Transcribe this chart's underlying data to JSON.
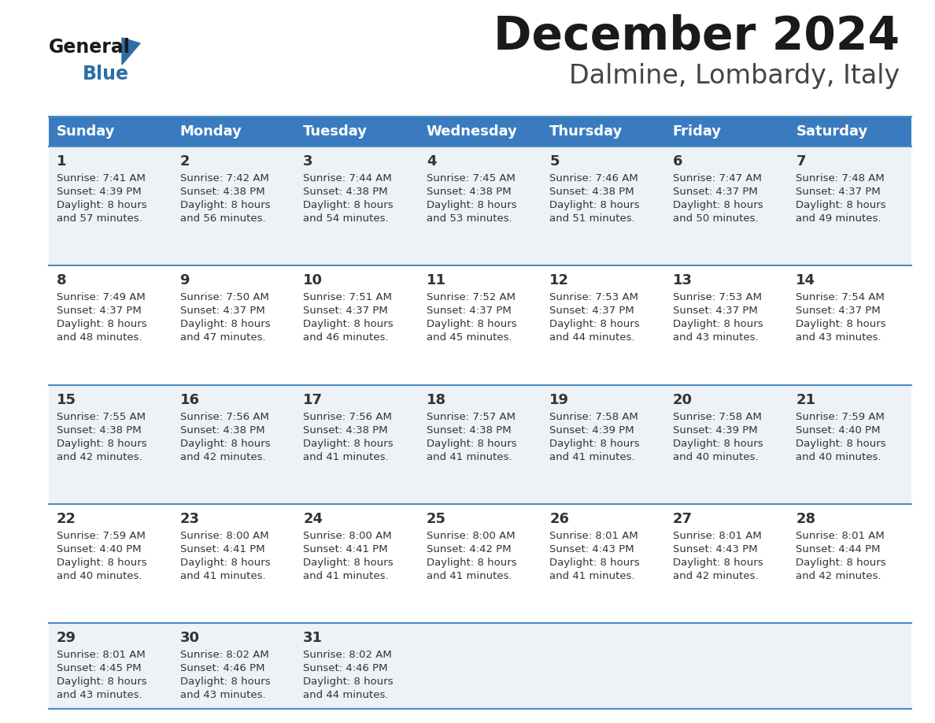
{
  "title": "December 2024",
  "subtitle": "Dalmine, Lombardy, Italy",
  "header_color": "#3a7bbf",
  "header_text_color": "#ffffff",
  "days_of_week": [
    "Sunday",
    "Monday",
    "Tuesday",
    "Wednesday",
    "Thursday",
    "Friday",
    "Saturday"
  ],
  "bg_color": "#ffffff",
  "row_bg": [
    "#edf2f7",
    "#ffffff",
    "#edf2f7",
    "#ffffff",
    "#edf2f7"
  ],
  "grid_line_color": "#4a8cc4",
  "text_color": "#333333",
  "calendar": [
    [
      {
        "day": 1,
        "sunrise": "7:41 AM",
        "sunset": "4:39 PM",
        "daylight": "8 hours and 57 minutes."
      },
      {
        "day": 2,
        "sunrise": "7:42 AM",
        "sunset": "4:38 PM",
        "daylight": "8 hours and 56 minutes."
      },
      {
        "day": 3,
        "sunrise": "7:44 AM",
        "sunset": "4:38 PM",
        "daylight": "8 hours and 54 minutes."
      },
      {
        "day": 4,
        "sunrise": "7:45 AM",
        "sunset": "4:38 PM",
        "daylight": "8 hours and 53 minutes."
      },
      {
        "day": 5,
        "sunrise": "7:46 AM",
        "sunset": "4:38 PM",
        "daylight": "8 hours and 51 minutes."
      },
      {
        "day": 6,
        "sunrise": "7:47 AM",
        "sunset": "4:37 PM",
        "daylight": "8 hours and 50 minutes."
      },
      {
        "day": 7,
        "sunrise": "7:48 AM",
        "sunset": "4:37 PM",
        "daylight": "8 hours and 49 minutes."
      }
    ],
    [
      {
        "day": 8,
        "sunrise": "7:49 AM",
        "sunset": "4:37 PM",
        "daylight": "8 hours and 48 minutes."
      },
      {
        "day": 9,
        "sunrise": "7:50 AM",
        "sunset": "4:37 PM",
        "daylight": "8 hours and 47 minutes."
      },
      {
        "day": 10,
        "sunrise": "7:51 AM",
        "sunset": "4:37 PM",
        "daylight": "8 hours and 46 minutes."
      },
      {
        "day": 11,
        "sunrise": "7:52 AM",
        "sunset": "4:37 PM",
        "daylight": "8 hours and 45 minutes."
      },
      {
        "day": 12,
        "sunrise": "7:53 AM",
        "sunset": "4:37 PM",
        "daylight": "8 hours and 44 minutes."
      },
      {
        "day": 13,
        "sunrise": "7:53 AM",
        "sunset": "4:37 PM",
        "daylight": "8 hours and 43 minutes."
      },
      {
        "day": 14,
        "sunrise": "7:54 AM",
        "sunset": "4:37 PM",
        "daylight": "8 hours and 43 minutes."
      }
    ],
    [
      {
        "day": 15,
        "sunrise": "7:55 AM",
        "sunset": "4:38 PM",
        "daylight": "8 hours and 42 minutes."
      },
      {
        "day": 16,
        "sunrise": "7:56 AM",
        "sunset": "4:38 PM",
        "daylight": "8 hours and 42 minutes."
      },
      {
        "day": 17,
        "sunrise": "7:56 AM",
        "sunset": "4:38 PM",
        "daylight": "8 hours and 41 minutes."
      },
      {
        "day": 18,
        "sunrise": "7:57 AM",
        "sunset": "4:38 PM",
        "daylight": "8 hours and 41 minutes."
      },
      {
        "day": 19,
        "sunrise": "7:58 AM",
        "sunset": "4:39 PM",
        "daylight": "8 hours and 41 minutes."
      },
      {
        "day": 20,
        "sunrise": "7:58 AM",
        "sunset": "4:39 PM",
        "daylight": "8 hours and 40 minutes."
      },
      {
        "day": 21,
        "sunrise": "7:59 AM",
        "sunset": "4:40 PM",
        "daylight": "8 hours and 40 minutes."
      }
    ],
    [
      {
        "day": 22,
        "sunrise": "7:59 AM",
        "sunset": "4:40 PM",
        "daylight": "8 hours and 40 minutes."
      },
      {
        "day": 23,
        "sunrise": "8:00 AM",
        "sunset": "4:41 PM",
        "daylight": "8 hours and 41 minutes."
      },
      {
        "day": 24,
        "sunrise": "8:00 AM",
        "sunset": "4:41 PM",
        "daylight": "8 hours and 41 minutes."
      },
      {
        "day": 25,
        "sunrise": "8:00 AM",
        "sunset": "4:42 PM",
        "daylight": "8 hours and 41 minutes."
      },
      {
        "day": 26,
        "sunrise": "8:01 AM",
        "sunset": "4:43 PM",
        "daylight": "8 hours and 41 minutes."
      },
      {
        "day": 27,
        "sunrise": "8:01 AM",
        "sunset": "4:43 PM",
        "daylight": "8 hours and 42 minutes."
      },
      {
        "day": 28,
        "sunrise": "8:01 AM",
        "sunset": "4:44 PM",
        "daylight": "8 hours and 42 minutes."
      }
    ],
    [
      {
        "day": 29,
        "sunrise": "8:01 AM",
        "sunset": "4:45 PM",
        "daylight": "8 hours and 43 minutes."
      },
      {
        "day": 30,
        "sunrise": "8:02 AM",
        "sunset": "4:46 PM",
        "daylight": "8 hours and 43 minutes."
      },
      {
        "day": 31,
        "sunrise": "8:02 AM",
        "sunset": "4:46 PM",
        "daylight": "8 hours and 44 minutes."
      },
      null,
      null,
      null,
      null
    ]
  ]
}
